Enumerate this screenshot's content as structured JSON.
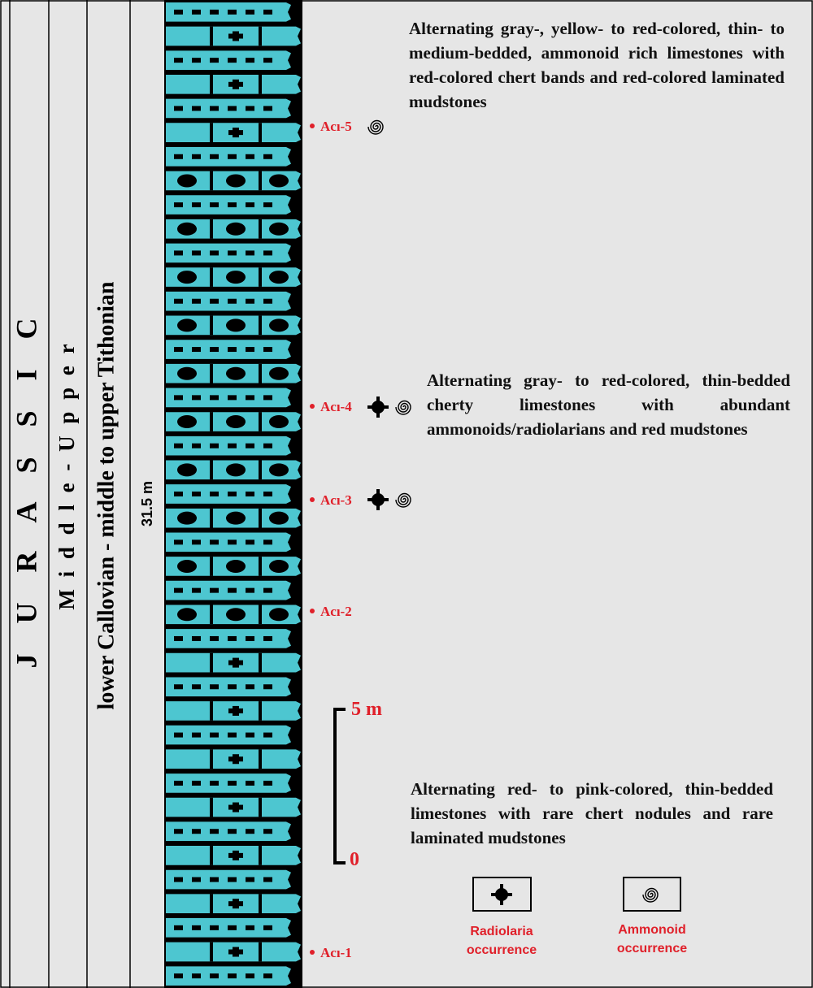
{
  "column": {
    "era": "J U R A S S I C",
    "epoch": "M i d d l e - U p p e r",
    "stage": "lower Callovian - middle to upper Tithonian",
    "thickness": "31.5 m"
  },
  "samples": [
    "Acı-5",
    "Acı-4",
    "Acı-3",
    "Acı-2",
    "Acı-1"
  ],
  "descriptions": [
    "Alternating gray-, yellow- to red-colored, thin- to medium-bedded, ammonoid rich limestones with red-colored chert bands and red-colored laminated mudstones",
    "Alternating gray- to red-colored, thin-bedded cherty limestones with abundant ammonoids/radiolarians and red mudstones",
    "Alternating red- to pink-colored, thin-bedded limestones with rare chert nodules and rare laminated mudstones"
  ],
  "scale": {
    "top": "5 m",
    "bottom": "0"
  },
  "legend": [
    "Radiolaria occurrence",
    "Ammonoid occurrence"
  ]
}
